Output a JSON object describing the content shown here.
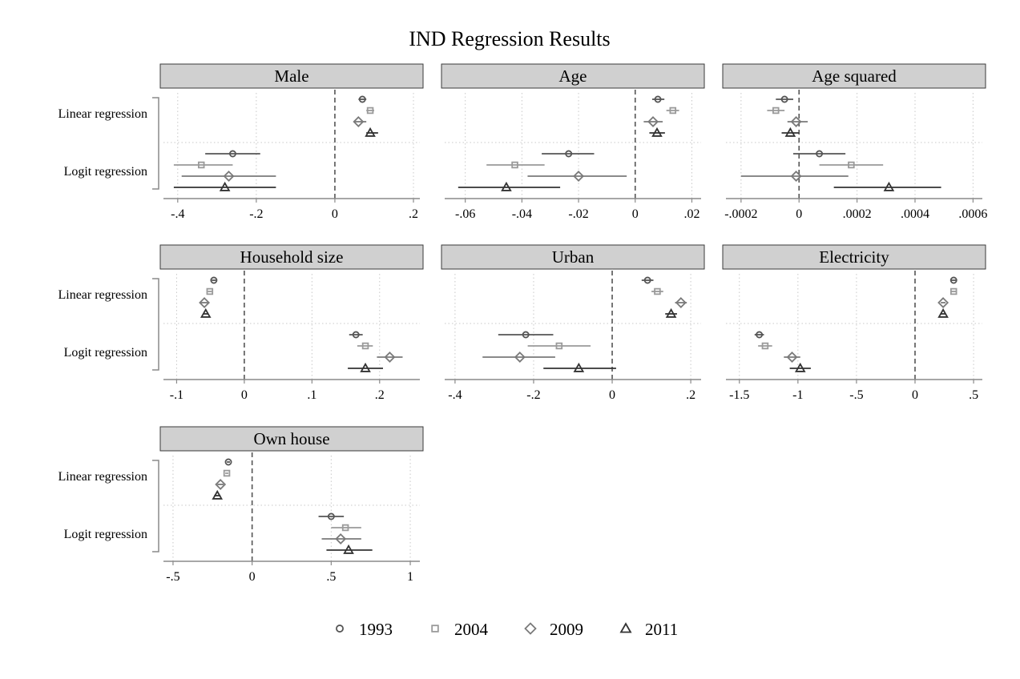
{
  "chart_data": {
    "type": "scatter",
    "subtype": "coefficient-plot-small-multiples",
    "title": "IND Regression Results",
    "categories": [
      "Linear regression",
      "Logit regression"
    ],
    "legend": {
      "position": "bottom",
      "entries": [
        {
          "name": "1993",
          "marker": "circle",
          "color": "#555555"
        },
        {
          "name": "2004",
          "marker": "square",
          "color": "#9a9a9a"
        },
        {
          "name": "2009",
          "marker": "diamond",
          "color": "#7a7a7a"
        },
        {
          "name": "2011",
          "marker": "triangle",
          "color": "#333333"
        }
      ]
    },
    "grid": true,
    "panels": [
      {
        "label": "Male",
        "xlim": [
          -0.42,
          0.2
        ],
        "ticks": [
          -0.4,
          -0.2,
          0,
          0.2
        ],
        "tick_labels": [
          "-.4",
          "-.2",
          "0",
          ".2"
        ],
        "series": [
          {
            "name": "1993",
            "linear": {
              "est": 0.07,
              "lo": 0.06,
              "hi": 0.08
            },
            "logit": {
              "est": -0.26,
              "lo": -0.33,
              "hi": -0.19
            }
          },
          {
            "name": "2004",
            "linear": {
              "est": 0.09,
              "lo": 0.08,
              "hi": 0.1
            },
            "logit": {
              "est": -0.34,
              "lo": -0.41,
              "hi": -0.26
            }
          },
          {
            "name": "2009",
            "linear": {
              "est": 0.06,
              "lo": 0.05,
              "hi": 0.08
            },
            "logit": {
              "est": -0.27,
              "lo": -0.39,
              "hi": -0.15
            }
          },
          {
            "name": "2011",
            "linear": {
              "est": 0.09,
              "lo": 0.08,
              "hi": 0.11
            },
            "logit": {
              "est": -0.28,
              "lo": -0.41,
              "hi": -0.15
            }
          }
        ]
      },
      {
        "label": "Age",
        "xlim": [
          -0.065,
          0.021
        ],
        "ticks": [
          -0.06,
          -0.04,
          -0.02,
          0,
          0.02
        ],
        "tick_labels": [
          "-.06",
          "-.04",
          "-.02",
          "0",
          ".02"
        ],
        "series": [
          {
            "name": "1993",
            "linear": {
              "est": 0.008,
              "lo": 0.006,
              "hi": 0.0103
            },
            "logit": {
              "est": -0.0235,
              "lo": -0.033,
              "hi": -0.0145
            }
          },
          {
            "name": "2004",
            "linear": {
              "est": 0.0133,
              "lo": 0.011,
              "hi": 0.0155
            },
            "logit": {
              "est": -0.0425,
              "lo": -0.0525,
              "hi": -0.032
            }
          },
          {
            "name": "2009",
            "linear": {
              "est": 0.0063,
              "lo": 0.003,
              "hi": 0.0097
            },
            "logit": {
              "est": -0.02,
              "lo": -0.038,
              "hi": -0.003
            }
          },
          {
            "name": "2011",
            "linear": {
              "est": 0.0077,
              "lo": 0.005,
              "hi": 0.0105
            },
            "logit": {
              "est": -0.0455,
              "lo": -0.0625,
              "hi": -0.0265
            }
          }
        ]
      },
      {
        "label": "Age squared",
        "xlim": [
          -0.00023,
          0.00061
        ],
        "ticks": [
          -0.0002,
          0,
          0.0002,
          0.0004,
          0.0006
        ],
        "tick_labels": [
          "-.0002",
          "0",
          ".0002",
          ".0004",
          ".0006"
        ],
        "series": [
          {
            "name": "1993",
            "linear": {
              "est": -5e-05,
              "lo": -8e-05,
              "hi": -2e-05
            },
            "logit": {
              "est": 7e-05,
              "lo": -2e-05,
              "hi": 0.00016
            }
          },
          {
            "name": "2004",
            "linear": {
              "est": -8e-05,
              "lo": -0.00011,
              "hi": -5e-05
            },
            "logit": {
              "est": 0.00018,
              "lo": 7e-05,
              "hi": 0.00029
            }
          },
          {
            "name": "2009",
            "linear": {
              "est": -1e-05,
              "lo": -4e-05,
              "hi": 3e-05
            },
            "logit": {
              "est": -1e-05,
              "lo": -0.0002,
              "hi": 0.00017
            }
          },
          {
            "name": "2011",
            "linear": {
              "est": -3e-05,
              "lo": -6e-05,
              "hi": 0.0
            },
            "logit": {
              "est": 0.00031,
              "lo": 0.00012,
              "hi": 0.00049
            }
          }
        ]
      },
      {
        "label": "Household size",
        "xlim": [
          -0.11,
          0.25
        ],
        "ticks": [
          -0.1,
          0,
          0.1,
          0.2
        ],
        "tick_labels": [
          "-.1",
          "0",
          ".1",
          ".2"
        ],
        "series": [
          {
            "name": "1993",
            "linear": {
              "est": -0.045,
              "lo": -0.048,
              "hi": -0.042
            },
            "logit": {
              "est": 0.165,
              "lo": 0.155,
              "hi": 0.175
            }
          },
          {
            "name": "2004",
            "linear": {
              "est": -0.051,
              "lo": -0.054,
              "hi": -0.048
            },
            "logit": {
              "est": 0.179,
              "lo": 0.167,
              "hi": 0.19
            }
          },
          {
            "name": "2009",
            "linear": {
              "est": -0.059,
              "lo": -0.065,
              "hi": -0.052
            },
            "logit": {
              "est": 0.215,
              "lo": 0.196,
              "hi": 0.234
            }
          },
          {
            "name": "2011",
            "linear": {
              "est": -0.057,
              "lo": -0.061,
              "hi": -0.053
            },
            "logit": {
              "est": 0.179,
              "lo": 0.153,
              "hi": 0.205
            }
          }
        ]
      },
      {
        "label": "Urban",
        "xlim": [
          -0.41,
          0.21
        ],
        "ticks": [
          -0.4,
          -0.2,
          0,
          0.2
        ],
        "tick_labels": [
          "-.4",
          "-.2",
          "0",
          ".2"
        ],
        "series": [
          {
            "name": "1993",
            "linear": {
              "est": 0.09,
              "lo": 0.075,
              "hi": 0.105
            },
            "logit": {
              "est": -0.22,
              "lo": -0.29,
              "hi": -0.15
            }
          },
          {
            "name": "2004",
            "linear": {
              "est": 0.115,
              "lo": 0.1,
              "hi": 0.13
            },
            "logit": {
              "est": -0.135,
              "lo": -0.215,
              "hi": -0.055
            }
          },
          {
            "name": "2009",
            "linear": {
              "est": 0.175,
              "lo": 0.16,
              "hi": 0.19
            },
            "logit": {
              "est": -0.235,
              "lo": -0.33,
              "hi": -0.145
            }
          },
          {
            "name": "2011",
            "linear": {
              "est": 0.15,
              "lo": 0.135,
              "hi": 0.165
            },
            "logit": {
              "est": -0.085,
              "lo": -0.175,
              "hi": 0.01
            }
          }
        ]
      },
      {
        "label": "Electricity",
        "xlim": [
          -1.56,
          0.52
        ],
        "ticks": [
          -1.5,
          -1,
          -0.5,
          0,
          0.5
        ],
        "tick_labels": [
          "-1.5",
          "-1",
          "-.5",
          "0",
          ".5"
        ],
        "series": [
          {
            "name": "1993",
            "linear": {
              "est": 0.33,
              "lo": 0.31,
              "hi": 0.35
            },
            "logit": {
              "est": -1.33,
              "lo": -1.37,
              "hi": -1.29
            }
          },
          {
            "name": "2004",
            "linear": {
              "est": 0.33,
              "lo": 0.31,
              "hi": 0.35
            },
            "logit": {
              "est": -1.28,
              "lo": -1.34,
              "hi": -1.22
            }
          },
          {
            "name": "2009",
            "linear": {
              "est": 0.24,
              "lo": 0.22,
              "hi": 0.26
            },
            "logit": {
              "est": -1.05,
              "lo": -1.12,
              "hi": -0.98
            }
          },
          {
            "name": "2011",
            "linear": {
              "est": 0.24,
              "lo": 0.22,
              "hi": 0.26
            },
            "logit": {
              "est": -0.98,
              "lo": -1.07,
              "hi": -0.89
            }
          }
        ]
      },
      {
        "label": "Own house",
        "xlim": [
          -0.52,
          1.02
        ],
        "ticks": [
          -0.5,
          0,
          0.5,
          1
        ],
        "tick_labels": [
          "-.5",
          "0",
          ".5",
          "1"
        ],
        "series": [
          {
            "name": "1993",
            "linear": {
              "est": -0.15,
              "lo": -0.16,
              "hi": -0.14
            },
            "logit": {
              "est": 0.5,
              "lo": 0.42,
              "hi": 0.58
            }
          },
          {
            "name": "2004",
            "linear": {
              "est": -0.16,
              "lo": -0.17,
              "hi": -0.15
            },
            "logit": {
              "est": 0.59,
              "lo": 0.5,
              "hi": 0.69
            }
          },
          {
            "name": "2009",
            "linear": {
              "est": -0.2,
              "lo": -0.22,
              "hi": -0.18
            },
            "logit": {
              "est": 0.56,
              "lo": 0.44,
              "hi": 0.69
            }
          },
          {
            "name": "2011",
            "linear": {
              "est": -0.22,
              "lo": -0.24,
              "hi": -0.2
            },
            "logit": {
              "est": 0.61,
              "lo": 0.47,
              "hi": 0.76
            }
          }
        ]
      }
    ]
  }
}
